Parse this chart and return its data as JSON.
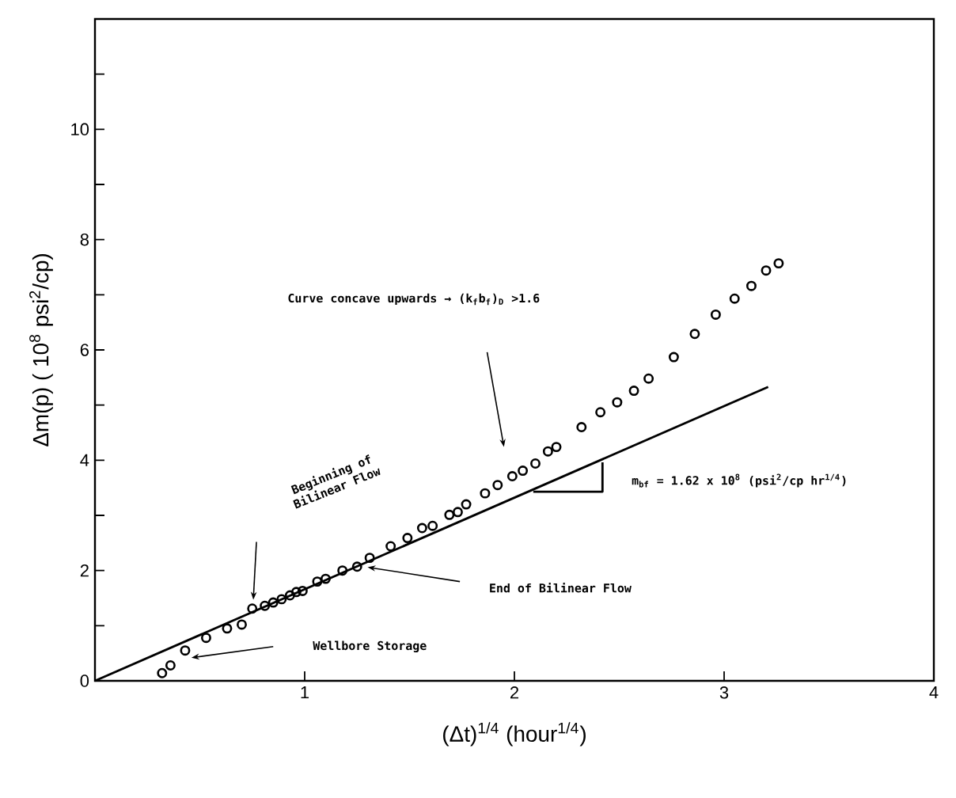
{
  "chart_data": {
    "type": "scatter",
    "xlabel": "(Δt)$^{1/4}$ (hour$^{1/4}$)",
    "ylabel": "Δm(p)  ( 10$^{8}$ psi$^{2}$/cp)",
    "xlim": [
      0,
      4
    ],
    "ylim": [
      0,
      12
    ],
    "xticks": [
      1,
      2,
      3,
      4
    ],
    "yticks": [
      0,
      {
        "value": 1,
        "label": null
      },
      2,
      {
        "value": 3,
        "label": null
      },
      4,
      {
        "value": 5,
        "label": null
      },
      6,
      {
        "value": 7,
        "label": null
      },
      8,
      {
        "value": 9,
        "label": null
      },
      10,
      {
        "value": 11,
        "label": null
      }
    ],
    "grid": false,
    "series": [
      {
        "marker": "circle",
        "color": "#000000",
        "x": [
          0.32,
          0.36,
          0.43,
          0.53,
          0.63,
          0.7,
          0.75,
          0.81,
          0.85,
          0.89,
          0.93,
          0.96,
          0.99,
          1.06,
          1.1,
          1.18,
          1.25,
          1.31,
          1.41,
          1.49,
          1.56,
          1.61,
          1.69,
          1.73,
          1.77,
          1.86,
          1.92,
          1.99,
          2.04,
          2.1,
          2.16,
          2.2,
          2.32,
          2.41,
          2.49,
          2.57,
          2.64,
          2.76,
          2.86,
          2.96,
          3.05,
          3.13,
          3.2,
          3.26
        ],
        "values": [
          0.14,
          0.28,
          0.55,
          0.78,
          0.95,
          1.02,
          1.31,
          1.36,
          1.42,
          1.48,
          1.55,
          1.61,
          1.63,
          1.8,
          1.85,
          2.0,
          2.07,
          2.23,
          2.44,
          2.59,
          2.77,
          2.81,
          3.01,
          3.06,
          3.2,
          3.4,
          3.55,
          3.71,
          3.81,
          3.94,
          4.16,
          4.24,
          4.6,
          4.87,
          5.05,
          5.26,
          5.48,
          5.87,
          6.29,
          6.64,
          6.93,
          7.16,
          7.44,
          7.57
        ]
      },
      {
        "type": "line",
        "line_style": "solid",
        "marker": "none",
        "color": "#000000",
        "x": [
          0,
          3.21
        ],
        "values": [
          0,
          5.33
        ]
      },
      {
        "type": "line",
        "line_style": "solid",
        "marker": "none",
        "color": "#000000",
        "x": [
          2.09,
          2.42,
          2.42
        ],
        "values": [
          3.43,
          3.43,
          3.96
        ]
      }
    ],
    "annotations": [
      "Curve concave upwards → (k$_{f}$b$_{f}$)$_{D}$ >1.6",
      "Beginning of Bilinear Flow",
      "End of Bilinear Flow",
      "Wellbore Storage",
      "m$_{bf}$ = 1.62 x 10$^{8}$ (psi$^{2}$/cp hr$^{1/4}$)"
    ]
  }
}
